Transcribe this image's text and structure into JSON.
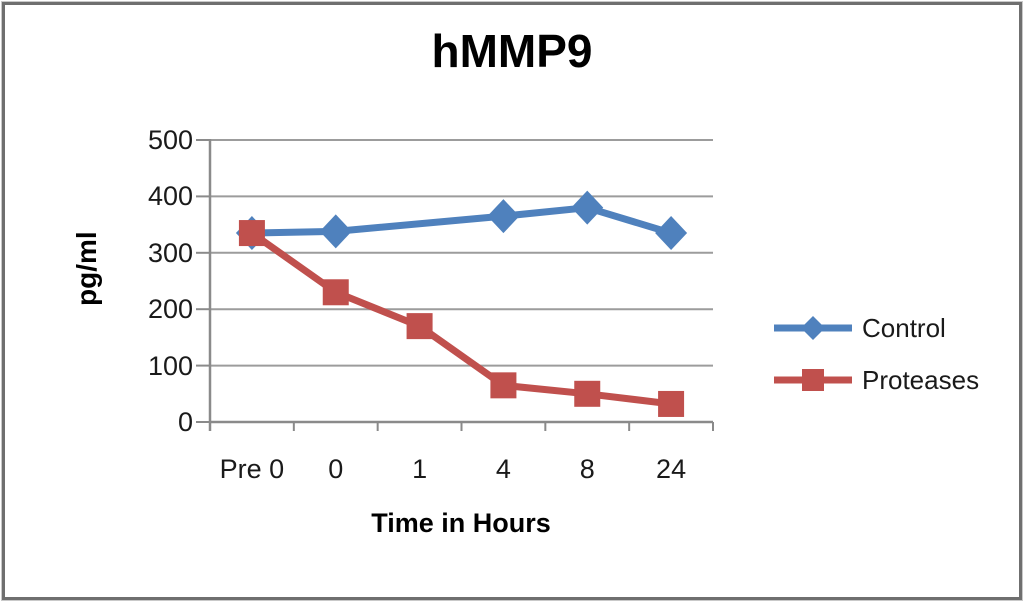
{
  "chart_data": {
    "type": "line",
    "title": "hMMP9",
    "xlabel": "Time in Hours",
    "ylabel": "pg/ml",
    "categories": [
      "Pre 0",
      "0",
      "1",
      "4",
      "8",
      "24"
    ],
    "series": [
      {
        "name": "Control",
        "color": "#4F81BD",
        "marker": "diamond",
        "values": [
          335,
          338,
          null,
          365,
          380,
          335
        ]
      },
      {
        "name": "Proteases",
        "color": "#C0504D",
        "marker": "square",
        "values": [
          335,
          230,
          170,
          65,
          50,
          32
        ]
      }
    ],
    "ylim": [
      0,
      500
    ],
    "ytick_interval": 100,
    "grid": true,
    "legend_position": "right"
  },
  "colors": {
    "gridline": "#9c9c9c",
    "axis": "#8a8a8a",
    "frame_border": "#6f6f6f",
    "text": "#1a1a1a"
  }
}
